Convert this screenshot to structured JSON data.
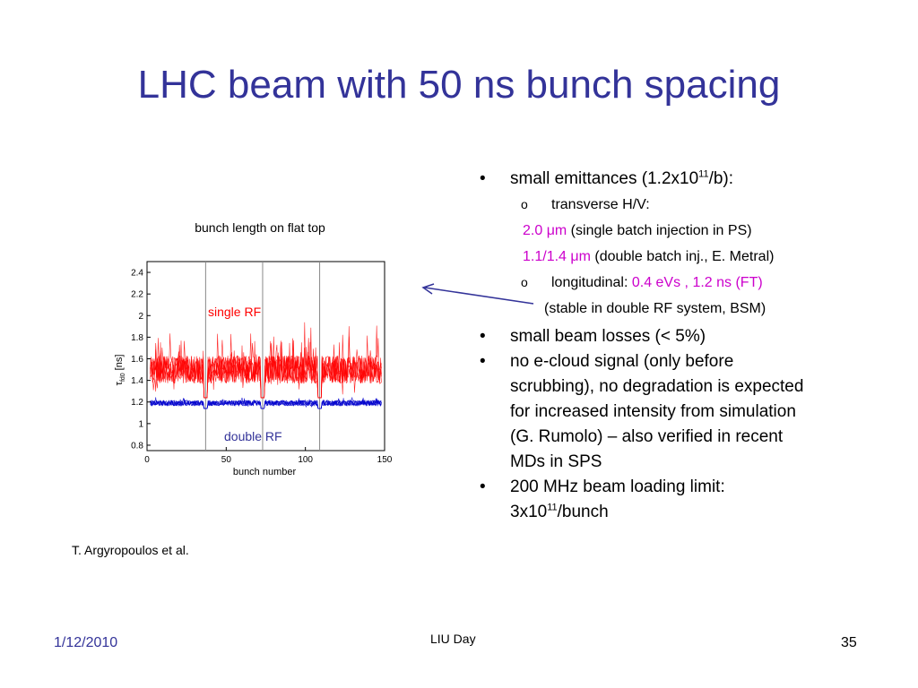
{
  "slide": {
    "title": "LHC beam with 50 ns bunch spacing",
    "chart_caption": "bunch length on flat top",
    "credit": "T. Argyropoulos et al.",
    "footer_date": "1/12/2010",
    "footer_center": "LIU Day",
    "page_number": "35"
  },
  "bullets": {
    "b1_pre": "small emittances (1.2x10",
    "b1_sup": "11",
    "b1_post": "/b):",
    "sub1": "transverse H/V:",
    "line2_val": "2.0 μm",
    "line2_rest": " (single batch injection in PS)",
    "line3_val": "1.1/1.4 μm",
    "line3_rest": " (double batch inj., E. Metral)",
    "sub2_pre": "longitudinal: ",
    "sub2_val": "0.4 eVs , 1.2 ns (FT)",
    "sub2_note": "(stable in double RF system, BSM)",
    "b2": "small beam losses (< 5%)",
    "b3_lines": [
      "no e-cloud signal (only before",
      "scrubbing), no degradation is expected",
      "for increased intensity from simulation",
      "(G. Rumolo) – also verified in recent",
      "MDs in SPS"
    ],
    "b4_line1": "200 MHz beam loading limit:",
    "b4_pre": "3x10",
    "b4_sup": "11",
    "b4_post": "/bunch",
    "marker": "•",
    "sub_marker": "o"
  },
  "chart_data": {
    "type": "line",
    "xlabel": "bunch number",
    "ylabel": "τ",
    "ylabel_sub": "fd0",
    "ylabel_unit": "[ns]",
    "xlim": [
      0,
      150
    ],
    "ylim": [
      0.75,
      2.5
    ],
    "xticks": [
      0,
      50,
      100,
      150
    ],
    "yticks": [
      0.8,
      1,
      1.2,
      1.4,
      1.6,
      1.8,
      2,
      2.2,
      2.4
    ],
    "batch_dividers": [
      37,
      73,
      109
    ],
    "series": [
      {
        "name": "single RF",
        "color": "#ff0000",
        "mean": 1.5,
        "spread": 0.13,
        "spikes": 0.45
      },
      {
        "name": "double RF",
        "color": "#0000cc",
        "mean": 1.19,
        "spread": 0.025,
        "spikes": 0.05
      }
    ]
  }
}
